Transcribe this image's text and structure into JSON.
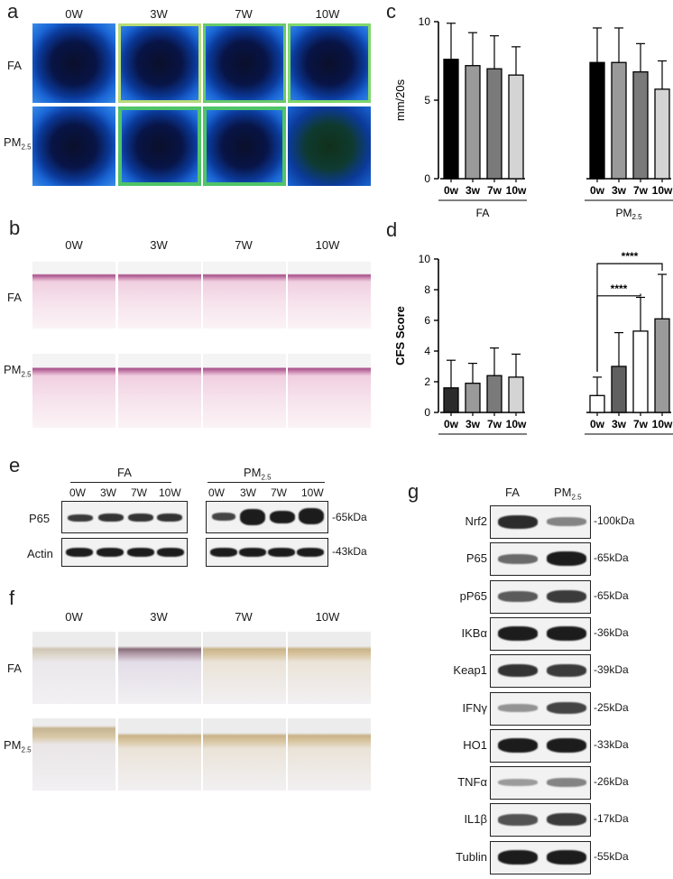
{
  "panels": {
    "a": {
      "letter": "a",
      "cols": [
        "0W",
        "3W",
        "7W",
        "10W"
      ],
      "rows": [
        "FA",
        "PM2.5"
      ]
    },
    "b": {
      "letter": "b",
      "cols": [
        "0W",
        "3W",
        "7W",
        "10W"
      ],
      "rows": [
        "FA",
        "PM2.5"
      ]
    },
    "c": {
      "letter": "c"
    },
    "d": {
      "letter": "d"
    },
    "e": {
      "letter": "e",
      "group1": "FA",
      "group2": "PM2.5",
      "lanes": [
        "0W",
        "3W",
        "7W",
        "10W"
      ],
      "rows": [
        "P65",
        "Actin"
      ],
      "kda": [
        "-65kDa",
        "-43kDa"
      ]
    },
    "f": {
      "letter": "f",
      "cols": [
        "0W",
        "3W",
        "7W",
        "10W"
      ],
      "rows": [
        "FA",
        "PM2.5"
      ]
    },
    "g": {
      "letter": "g",
      "cols": [
        "FA",
        "PM2.5"
      ],
      "rows": [
        {
          "name": "Nrf2",
          "kda": "-100kDa"
        },
        {
          "name": "P65",
          "kda": "-65kDa"
        },
        {
          "name": "pP65",
          "kda": "-65kDa"
        },
        {
          "name": "IKBα",
          "kda": "-36kDa"
        },
        {
          "name": "Keap1",
          "kda": "-39kDa"
        },
        {
          "name": "IFNγ",
          "kda": "-25kDa"
        },
        {
          "name": "HO1",
          "kda": "-33kDa"
        },
        {
          "name": "TNFα",
          "kda": "-26kDa"
        },
        {
          "name": "IL1β",
          "kda": "-17kDa"
        },
        {
          "name": "Tublin",
          "kda": "-55kDa"
        }
      ]
    }
  },
  "chart_data": [
    {
      "type": "bar",
      "panel": "c",
      "ylabel": "mm/20s",
      "ylim": [
        0,
        10
      ],
      "yticks": [
        0,
        5,
        10
      ],
      "groups": [
        {
          "name": "FA",
          "categories": [
            "0w",
            "3w",
            "7w",
            "10w"
          ],
          "values": [
            7.6,
            7.2,
            7.0,
            6.6
          ],
          "errors": [
            2.3,
            2.1,
            2.1,
            1.8
          ]
        },
        {
          "name": "PM2.5",
          "categories": [
            "0w",
            "3w",
            "7w",
            "10w"
          ],
          "values": [
            7.4,
            7.4,
            6.8,
            5.7
          ],
          "errors": [
            2.2,
            2.2,
            1.8,
            1.8
          ]
        }
      ],
      "colors": [
        "#000000",
        "#9a9a9a",
        "#7a7a7a",
        "#d4d4d4"
      ]
    },
    {
      "type": "bar",
      "panel": "d",
      "ylabel": "CFS Score",
      "ylim": [
        0,
        10
      ],
      "yticks": [
        0,
        2,
        4,
        6,
        8,
        10
      ],
      "groups": [
        {
          "name": "FA",
          "categories": [
            "0w",
            "3w",
            "7w",
            "10w"
          ],
          "values": [
            1.6,
            1.9,
            2.4,
            2.3
          ],
          "errors": [
            1.8,
            1.3,
            1.8,
            1.5
          ]
        },
        {
          "name": "PM2.5",
          "categories": [
            "0w",
            "3w",
            "7w",
            "10w"
          ],
          "values": [
            1.1,
            3.0,
            5.3,
            6.1
          ],
          "errors": [
            1.2,
            2.2,
            2.2,
            2.9
          ]
        }
      ],
      "colors_fa": [
        "#2b2b2b",
        "#9a9a9a",
        "#7a7a7a",
        "#d4d4d4"
      ],
      "colors_pm": [
        "#ffffff",
        "#606060",
        "#ffffff",
        "#9a9a9a"
      ],
      "annotations": [
        {
          "label": "****",
          "from": "0w",
          "to": "7w",
          "group": "PM2.5"
        },
        {
          "label": "****",
          "from": "0w",
          "to": "10w",
          "group": "PM2.5"
        }
      ]
    }
  ]
}
